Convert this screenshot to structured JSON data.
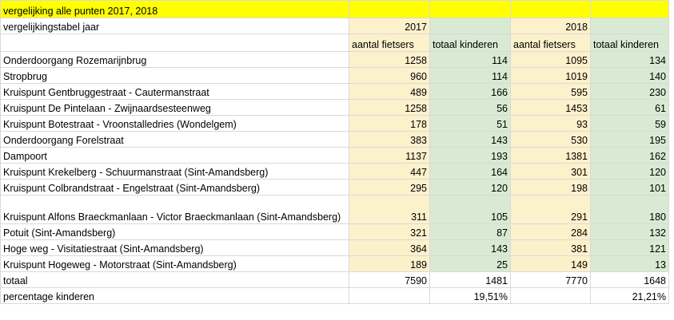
{
  "title": "vergelijking alle punten 2017, 2018",
  "header": {
    "label": "vergelijkingstabel jaar",
    "year1": "2017",
    "year2": "2018",
    "col_cyclists": "aantal fietsers",
    "col_children": "totaal kinderen"
  },
  "rows": [
    {
      "name": "Onderdoorgang Rozemarijnbrug",
      "c17": "1258",
      "k17": "114",
      "c18": "1095",
      "k18": "134"
    },
    {
      "name": "Stropbrug",
      "c17": "960",
      "k17": "114",
      "c18": "1019",
      "k18": "140"
    },
    {
      "name": "Kruispunt Gentbruggestraat - Cautermanstraat",
      "c17": "489",
      "k17": "166",
      "c18": "595",
      "k18": "230"
    },
    {
      "name": "Kruispunt De Pintelaan - Zwijnaardsesteenweg",
      "c17": "1258",
      "k17": "56",
      "c18": "1453",
      "k18": "61"
    },
    {
      "name": "Kruispunt Botestraat - Vroonstalledries (Wondelgem)",
      "c17": "178",
      "k17": "51",
      "c18": "93",
      "k18": "59"
    },
    {
      "name": "Onderdoorgang Forelstraat",
      "c17": "383",
      "k17": "143",
      "c18": "530",
      "k18": "195"
    },
    {
      "name": "Dampoort",
      "c17": "1137",
      "k17": "193",
      "c18": "1381",
      "k18": "162"
    },
    {
      "name": "Kruispunt Krekelberg - Schuurmanstraat (Sint-Amandsberg)",
      "c17": "447",
      "k17": "164",
      "c18": "301",
      "k18": "120"
    },
    {
      "name": "Kruispunt Colbrandstraat - Engelstraat (Sint-Amandsberg)",
      "c17": "295",
      "k17": "120",
      "c18": "198",
      "k18": "101"
    },
    {
      "name": "Kruispunt Alfons Braeckmanlaan - Victor Braeckmanlaan (Sint-Amandsberg)",
      "c17": "311",
      "k17": "105",
      "c18": "291",
      "k18": "180"
    },
    {
      "name": "Potuit (Sint-Amandsberg)",
      "c17": "321",
      "k17": "87",
      "c18": "284",
      "k18": "132"
    },
    {
      "name": "Hoge weg - Visitatiestraat (Sint-Amandsberg)",
      "c17": "364",
      "k17": "143",
      "c18": "381",
      "k18": "121"
    },
    {
      "name": "Kruispunt Hogeweg - Motorstraat (Sint-Amandsberg)",
      "c17": "189",
      "k17": "25",
      "c18": "149",
      "k18": "13"
    }
  ],
  "total": {
    "label": "totaal",
    "c17": "7590",
    "k17": "1481",
    "c18": "7770",
    "k18": "1648"
  },
  "percentage": {
    "label": "percentage kinderen",
    "p17": "19,51%",
    "p18": "21,21%"
  }
}
